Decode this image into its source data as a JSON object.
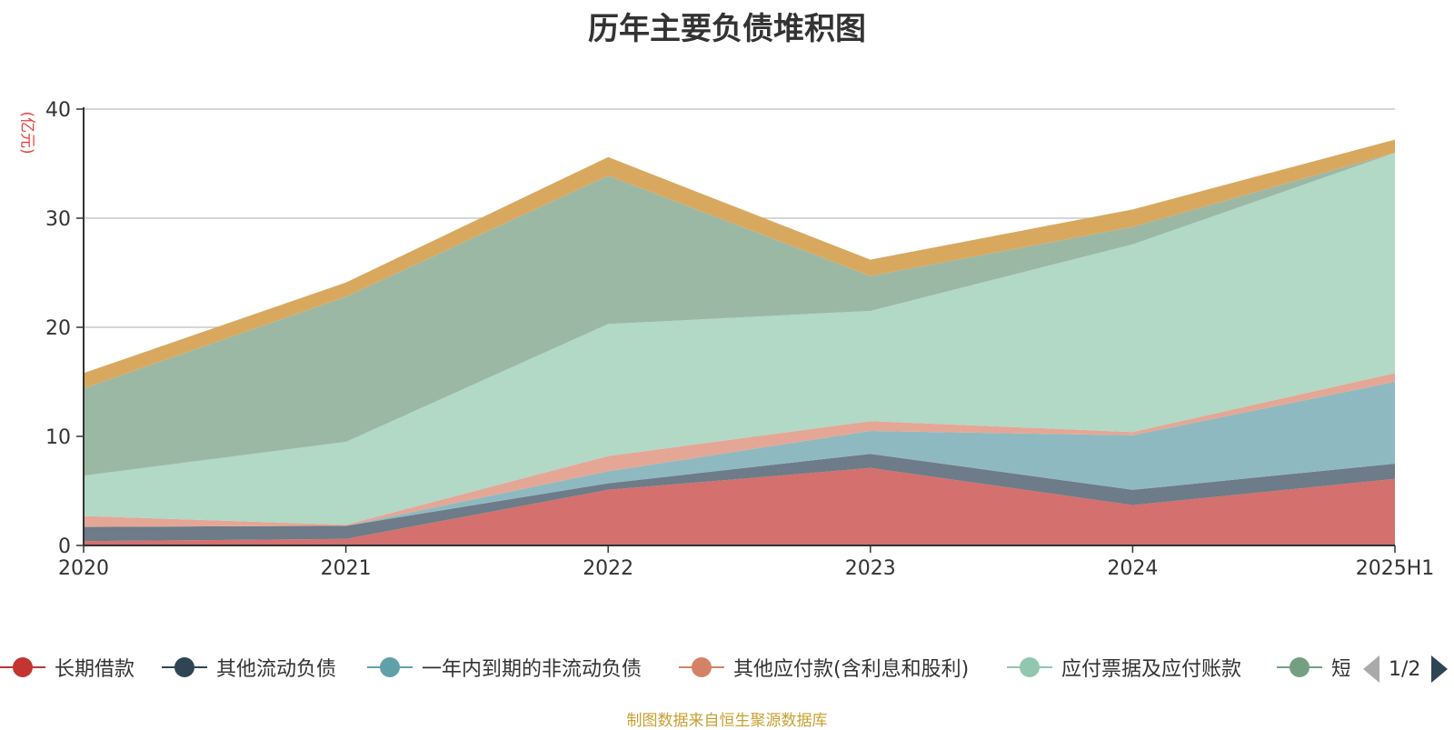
{
  "chart_data": {
    "type": "area",
    "stacked": true,
    "title": "历年主要负债堆积图",
    "y_unit": "(亿元)",
    "categories": [
      "2020",
      "2021",
      "2022",
      "2023",
      "2024",
      "2025H1"
    ],
    "ylim": [
      0,
      40
    ],
    "yticks": [
      0,
      10,
      20,
      30,
      40
    ],
    "grid": true,
    "series": [
      {
        "name": "长期借款",
        "color": "#d4706d",
        "line_color": "#c23531",
        "values": [
          0.4,
          0.6,
          5.1,
          7.1,
          3.7,
          6.1
        ]
      },
      {
        "name": "其他流动负债",
        "color": "#6e7b88",
        "line_color": "#2f4554",
        "values": [
          1.3,
          1.2,
          0.6,
          1.3,
          1.4,
          1.4
        ]
      },
      {
        "name": "一年内到期的非流动负债",
        "color": "#8fb9c0",
        "line_color": "#61a0a8",
        "values": [
          0.0,
          0.0,
          1.1,
          2.1,
          5.0,
          7.5
        ]
      },
      {
        "name": "其他应付款(含利息和股利)",
        "color": "#e4a796",
        "line_color": "#d48265",
        "values": [
          1.0,
          0.1,
          1.4,
          0.9,
          0.3,
          0.8
        ]
      },
      {
        "name": "应付票据及应付账款",
        "color": "#b2d8c6",
        "line_color": "#91c7ae",
        "values": [
          3.7,
          7.6,
          12.1,
          10.1,
          17.2,
          20.2
        ]
      },
      {
        "name": "短",
        "color": "#9bb8a5",
        "line_color": "#749f83",
        "values": [
          8.0,
          13.3,
          13.6,
          3.2,
          1.6,
          0.0
        ]
      },
      {
        "name": "",
        "color": "#d9a85f",
        "line_color": "#ca8622",
        "values": [
          1.4,
          1.3,
          1.7,
          1.5,
          1.6,
          1.2
        ]
      }
    ]
  },
  "legend": {
    "items": [
      {
        "name": "长期借款",
        "color": "#c23531"
      },
      {
        "name": "其他流动负债",
        "color": "#2f4554"
      },
      {
        "name": "一年内到期的非流动负债",
        "color": "#61a0a8"
      },
      {
        "name": "其他应付款(含利息和股利)",
        "color": "#d48265"
      },
      {
        "name": "应付票据及应付账款",
        "color": "#91c7ae"
      },
      {
        "name": "短",
        "color": "#749f83"
      }
    ],
    "page_text": "1/2"
  },
  "footer": {
    "source": "制图数据来自恒生聚源数据库"
  }
}
